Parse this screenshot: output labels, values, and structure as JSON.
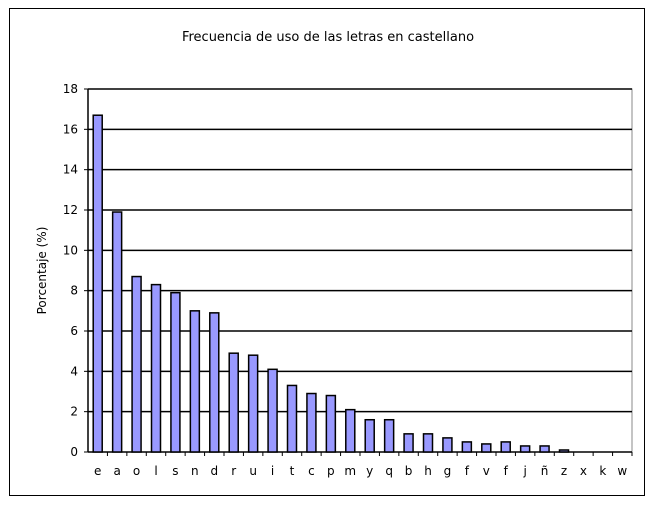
{
  "chart_data": {
    "type": "bar",
    "title": "Frecuencia de uso de las letras en castellano",
    "xlabel": "",
    "ylabel": "Porcentaje (%)",
    "ylim": [
      0,
      18
    ],
    "yticks": [
      0,
      2,
      4,
      6,
      8,
      10,
      12,
      14,
      16,
      18
    ],
    "grid": true,
    "categories": [
      "e",
      "a",
      "o",
      "l",
      "s",
      "n",
      "d",
      "r",
      "u",
      "i",
      "t",
      "c",
      "p",
      "m",
      "y",
      "q",
      "b",
      "h",
      "g",
      "f",
      "v",
      "f",
      "j",
      "ñ",
      "z",
      "x",
      "k",
      "w"
    ],
    "values": [
      16.7,
      11.9,
      8.7,
      8.3,
      7.9,
      7.0,
      6.9,
      4.9,
      4.8,
      4.1,
      3.3,
      2.9,
      2.8,
      2.1,
      1.6,
      1.6,
      0.9,
      0.9,
      0.7,
      0.5,
      0.4,
      0.5,
      0.3,
      0.3,
      0.1,
      0,
      0,
      0
    ],
    "colors": {
      "bar": "#9999ff",
      "bar_edge": "#000000",
      "grid": "#000000"
    }
  }
}
